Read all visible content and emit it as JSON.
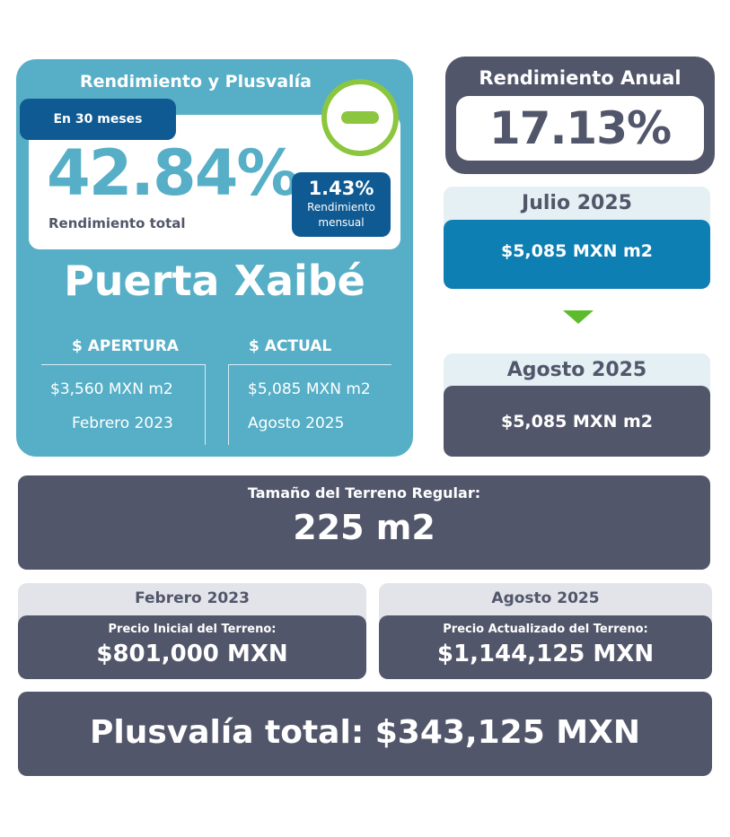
{
  "yield_card": {
    "title": "Rendimiento y Plusvalía",
    "period_badge": "En 30 meses",
    "total_yield": "42.84%",
    "total_yield_label": "Rendimiento total",
    "monthly_yield": "1.43%",
    "monthly_yield_label_1": "Rendimiento",
    "monthly_yield_label_2": "mensual",
    "status_icon": "minus-circle-icon",
    "project_name": "Puerta Xaibé",
    "opening": {
      "header": "$ APERTURA",
      "price": "$3,560 MXN m2",
      "date": "Febrero 2023"
    },
    "current": {
      "header": "$ ACTUAL",
      "price": "$5,085 MXN m2",
      "date": "Agosto 2025"
    }
  },
  "annual_yield": {
    "title": "Rendimiento Anual",
    "value": "17.13%"
  },
  "price_timeline": {
    "previous": {
      "month": "Julio 2025",
      "price": "$5,085 MXN m2"
    },
    "arrow_icon": "triangle-down-icon",
    "latest": {
      "month": "Agosto 2025",
      "price": "$5,085 MXN m2"
    }
  },
  "lot": {
    "label": "Tamaño del Terreno Regular:",
    "size": "225 m2"
  },
  "initial_price": {
    "date": "Febrero 2023",
    "label": "Precio Inicial del Terreno:",
    "value": "$801,000 MXN"
  },
  "updated_price": {
    "date": "Agosto 2025",
    "label": "Precio Actualizado del Terreno:",
    "value": "$1,144,125 MXN"
  },
  "capital_gain": {
    "text": "Plusvalía total: $343,125 MXN"
  },
  "colors": {
    "teal": "#56afc7",
    "navy": "#0f5a92",
    "slate": "#52566a",
    "green": "#8cc63f",
    "blue": "#0e7fb3"
  }
}
